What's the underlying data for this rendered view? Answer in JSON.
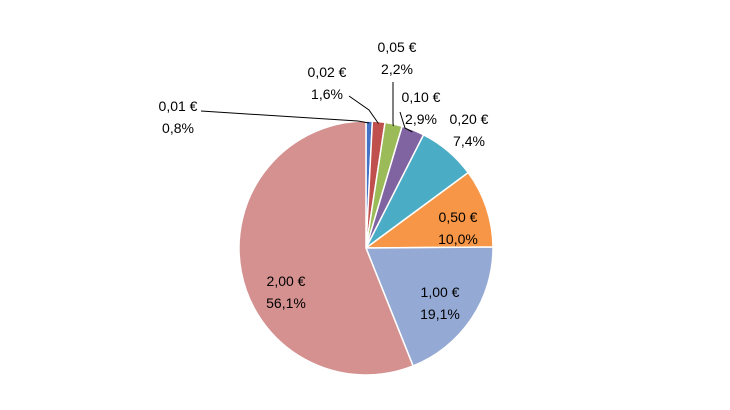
{
  "chart_data": {
    "type": "pie",
    "title": "",
    "colors": {
      "0,01 €": "#4472C4",
      "0,02 €": "#C0504D",
      "0,05 €": "#9BBB59",
      "0,10 €": "#8064A2",
      "0,20 €": "#4BACC6",
      "0,50 €": "#F79646",
      "1,00 €": "#95A9D5",
      "2,00 €": "#D49190"
    },
    "slices": [
      {
        "label": "0,01 €",
        "percent_label": "0,8%",
        "value": 0.8
      },
      {
        "label": "0,02 €",
        "percent_label": "1,6%",
        "value": 1.6
      },
      {
        "label": "0,05 €",
        "percent_label": "2,2%",
        "value": 2.2
      },
      {
        "label": "0,10 €",
        "percent_label": "2,9%",
        "value": 2.9
      },
      {
        "label": "0,20 €",
        "percent_label": "7,4%",
        "value": 7.4
      },
      {
        "label": "0,50 €",
        "percent_label": "10,0%",
        "value": 10.0
      },
      {
        "label": "1,00 €",
        "percent_label": "19,1%",
        "value": 19.1
      },
      {
        "label": "2,00 €",
        "percent_label": "56,1%",
        "value": 56.1
      }
    ]
  }
}
